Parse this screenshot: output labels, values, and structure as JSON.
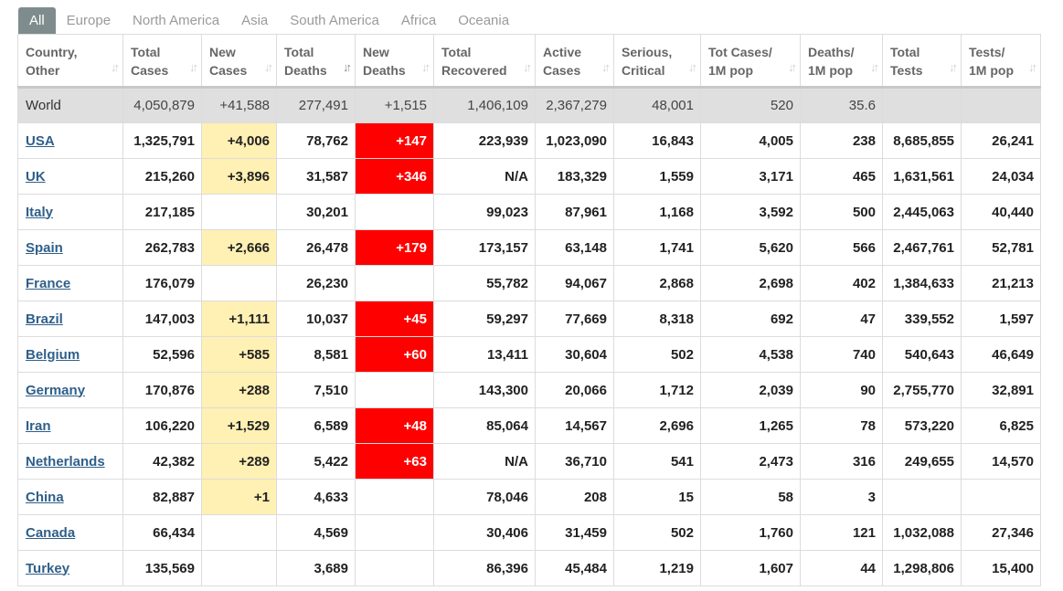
{
  "tabs": [
    "All",
    "Europe",
    "North America",
    "Asia",
    "South America",
    "Africa",
    "Oceania"
  ],
  "active_tab": "All",
  "colors": {
    "tab_active_bg": "#7f8c8d",
    "new_cases_highlight": "#fff0b3",
    "new_deaths_highlight": "#ff0000",
    "link": "#2f5f8a",
    "world_row_bg": "#dfdfdf"
  },
  "headers": [
    {
      "line1": "Country,",
      "line2": "Other"
    },
    {
      "line1": "Total",
      "line2": "Cases"
    },
    {
      "line1": "New",
      "line2": "Cases"
    },
    {
      "line1": "Total",
      "line2": "Deaths"
    },
    {
      "line1": "New",
      "line2": "Deaths"
    },
    {
      "line1": "Total",
      "line2": "Recovered"
    },
    {
      "line1": "Active",
      "line2": "Cases"
    },
    {
      "line1": "Serious,",
      "line2": "Critical"
    },
    {
      "line1": "Tot Cases/",
      "line2": "1M pop"
    },
    {
      "line1": "Deaths/",
      "line2": "1M pop"
    },
    {
      "line1": "Total",
      "line2": "Tests"
    },
    {
      "line1": "Tests/",
      "line2": "1M pop"
    }
  ],
  "world": [
    "World",
    "4,050,879",
    "+41,588",
    "277,491",
    "+1,515",
    "1,406,109",
    "2,367,279",
    "48,001",
    "520",
    "35.6",
    "",
    ""
  ],
  "rows": [
    [
      "USA",
      "1,325,791",
      "+4,006",
      "78,762",
      "+147",
      "223,939",
      "1,023,090",
      "16,843",
      "4,005",
      "238",
      "8,685,855",
      "26,241"
    ],
    [
      "UK",
      "215,260",
      "+3,896",
      "31,587",
      "+346",
      "N/A",
      "183,329",
      "1,559",
      "3,171",
      "465",
      "1,631,561",
      "24,034"
    ],
    [
      "Italy",
      "217,185",
      "",
      "30,201",
      "",
      "99,023",
      "87,961",
      "1,168",
      "3,592",
      "500",
      "2,445,063",
      "40,440"
    ],
    [
      "Spain",
      "262,783",
      "+2,666",
      "26,478",
      "+179",
      "173,157",
      "63,148",
      "1,741",
      "5,620",
      "566",
      "2,467,761",
      "52,781"
    ],
    [
      "France",
      "176,079",
      "",
      "26,230",
      "",
      "55,782",
      "94,067",
      "2,868",
      "2,698",
      "402",
      "1,384,633",
      "21,213"
    ],
    [
      "Brazil",
      "147,003",
      "+1,111",
      "10,037",
      "+45",
      "59,297",
      "77,669",
      "8,318",
      "692",
      "47",
      "339,552",
      "1,597"
    ],
    [
      "Belgium",
      "52,596",
      "+585",
      "8,581",
      "+60",
      "13,411",
      "30,604",
      "502",
      "4,538",
      "740",
      "540,643",
      "46,649"
    ],
    [
      "Germany",
      "170,876",
      "+288",
      "7,510",
      "",
      "143,300",
      "20,066",
      "1,712",
      "2,039",
      "90",
      "2,755,770",
      "32,891"
    ],
    [
      "Iran",
      "106,220",
      "+1,529",
      "6,589",
      "+48",
      "85,064",
      "14,567",
      "2,696",
      "1,265",
      "78",
      "573,220",
      "6,825"
    ],
    [
      "Netherlands",
      "42,382",
      "+289",
      "5,422",
      "+63",
      "N/A",
      "36,710",
      "541",
      "2,473",
      "316",
      "249,655",
      "14,570"
    ],
    [
      "China",
      "82,887",
      "+1",
      "4,633",
      "",
      "78,046",
      "208",
      "15",
      "58",
      "3",
      "",
      ""
    ],
    [
      "Canada",
      "66,434",
      "",
      "4,569",
      "",
      "30,406",
      "31,459",
      "502",
      "1,760",
      "121",
      "1,032,088",
      "27,346"
    ],
    [
      "Turkey",
      "135,569",
      "",
      "3,689",
      "",
      "86,396",
      "45,484",
      "1,219",
      "1,607",
      "44",
      "1,298,806",
      "15,400"
    ]
  ]
}
